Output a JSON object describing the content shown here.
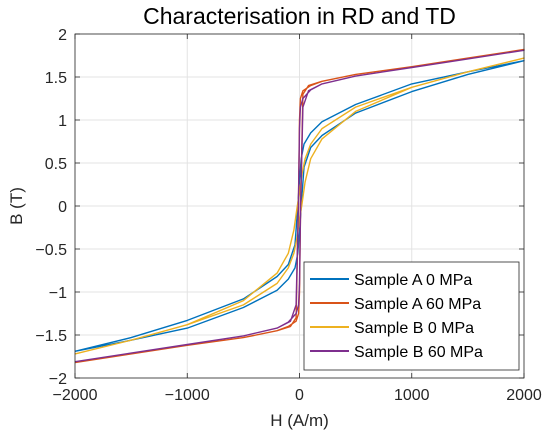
{
  "chart_data": {
    "type": "line",
    "title": "Characterisation in RD and TD",
    "xlabel": "H (A/m)",
    "ylabel": "B (T)",
    "xlim": [
      -2000,
      2000
    ],
    "ylim": [
      -2,
      2
    ],
    "xticks": [
      -2000,
      -1000,
      0,
      1000,
      2000
    ],
    "xtick_labels": [
      "−2000",
      "−1000",
      "0",
      "1000",
      "2000"
    ],
    "yticks": [
      -2,
      -1.5,
      -1,
      -0.5,
      0,
      0.5,
      1,
      1.5,
      2
    ],
    "ytick_labels": [
      "−2",
      "−1.5",
      "−1",
      "−0.5",
      "0",
      "0.5",
      "1",
      "1.5",
      "2"
    ],
    "grid": true,
    "legend_position": "bottom-right",
    "series": [
      {
        "name": "Sample A   0 MPa",
        "color": "#0072BD",
        "x": [
          -2000,
          -1500,
          -1000,
          -500,
          -200,
          -100,
          -40,
          -15,
          0,
          15,
          40,
          100,
          200,
          500,
          1000,
          1500,
          2000,
          1500,
          1000,
          500,
          200,
          100,
          40,
          15,
          0,
          -15,
          -40,
          -100,
          -200,
          -500,
          -1000,
          -1500,
          -2000
        ],
        "y": [
          -1.69,
          -1.53,
          -1.33,
          -1.08,
          -0.82,
          -0.68,
          -0.45,
          0.0,
          0.3,
          0.55,
          0.72,
          0.85,
          0.98,
          1.18,
          1.42,
          1.56,
          1.69,
          1.53,
          1.33,
          1.08,
          0.82,
          0.68,
          0.45,
          0.0,
          -0.3,
          -0.55,
          -0.72,
          -0.85,
          -0.98,
          -1.18,
          -1.42,
          -1.56,
          -1.69
        ]
      },
      {
        "name": "Sample A 60 MPa",
        "color": "#D95319",
        "x": [
          -2000,
          -1500,
          -1000,
          -500,
          -200,
          -80,
          -30,
          -10,
          0,
          8,
          30,
          100,
          200,
          500,
          1000,
          1500,
          2000,
          1500,
          1000,
          500,
          200,
          80,
          30,
          10,
          0,
          -8,
          -30,
          -100,
          -200,
          -500,
          -1000,
          -1500,
          -2000
        ],
        "y": [
          -1.82,
          -1.72,
          -1.62,
          -1.53,
          -1.45,
          -1.4,
          -1.3,
          0.0,
          1.0,
          1.25,
          1.34,
          1.4,
          1.45,
          1.53,
          1.62,
          1.72,
          1.82,
          1.72,
          1.62,
          1.53,
          1.45,
          1.4,
          1.3,
          0.0,
          -1.0,
          -1.25,
          -1.34,
          -1.4,
          -1.45,
          -1.53,
          -1.62,
          -1.72,
          -1.82
        ]
      },
      {
        "name": "Sample B   0 MPa",
        "color": "#EDB120",
        "x": [
          -2000,
          -1500,
          -1000,
          -500,
          -200,
          -100,
          -50,
          -20,
          0,
          20,
          50,
          100,
          200,
          500,
          1000,
          1500,
          2000,
          1500,
          1000,
          500,
          200,
          100,
          50,
          20,
          0,
          -20,
          -50,
          -100,
          -200,
          -500,
          -1000,
          -1500,
          -2000
        ],
        "y": [
          -1.72,
          -1.56,
          -1.38,
          -1.1,
          -0.78,
          -0.55,
          -0.28,
          0.0,
          0.15,
          0.35,
          0.55,
          0.72,
          0.9,
          1.15,
          1.38,
          1.56,
          1.72,
          1.56,
          1.38,
          1.1,
          0.78,
          0.55,
          0.28,
          0.0,
          -0.15,
          -0.35,
          -0.55,
          -0.72,
          -0.9,
          -1.15,
          -1.38,
          -1.56,
          -1.72
        ]
      },
      {
        "name": "Sample B 60 MPa",
        "color": "#7E2F8E",
        "x": [
          -2000,
          -1500,
          -1000,
          -500,
          -200,
          -80,
          -30,
          -10,
          0,
          8,
          30,
          100,
          200,
          500,
          1000,
          1500,
          2000,
          1500,
          1000,
          500,
          200,
          80,
          30,
          10,
          0,
          -8,
          -30,
          -100,
          -200,
          -500,
          -1000,
          -1500,
          -2000
        ],
        "y": [
          -1.81,
          -1.71,
          -1.61,
          -1.51,
          -1.42,
          -1.34,
          -1.15,
          0.0,
          0.9,
          1.15,
          1.25,
          1.35,
          1.42,
          1.51,
          1.61,
          1.71,
          1.81,
          1.71,
          1.61,
          1.51,
          1.42,
          1.34,
          1.15,
          0.0,
          -0.9,
          -1.15,
          -1.25,
          -1.35,
          -1.42,
          -1.51,
          -1.61,
          -1.71,
          -1.81
        ]
      }
    ]
  }
}
